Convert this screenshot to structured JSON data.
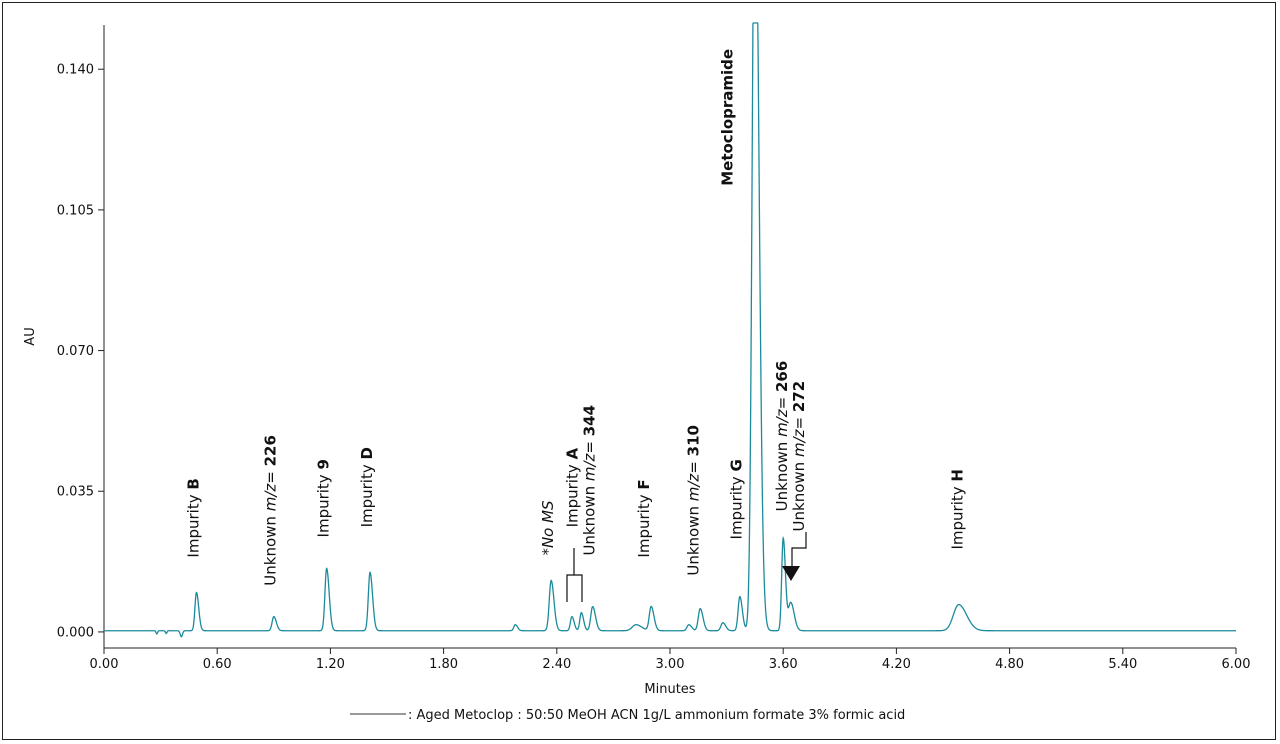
{
  "chart_data": {
    "type": "line",
    "xlabel": "Minutes",
    "ylabel": "AU",
    "xlim": [
      0.0,
      6.0
    ],
    "ylim": [
      -0.004,
      0.151
    ],
    "x_ticks": [
      "0.00",
      "0.60",
      "1.20",
      "1.80",
      "2.40",
      "3.00",
      "3.60",
      "4.20",
      "4.80",
      "5.40",
      "6.00"
    ],
    "y_ticks": [
      "0.000",
      "0.035",
      "0.070",
      "0.105",
      "0.140"
    ],
    "grid": false,
    "legend": {
      "placement": "bottom",
      "text": ": Aged Metoclop : 50:50 MeOH ACN 1g/L ammonium formate 3% formic acid"
    },
    "series": [
      {
        "line_color": "#1b8b9c",
        "baseline": 0.0003,
        "peaks": [
          {
            "rt": 0.49,
            "height": 0.0095,
            "width": 0.008
          },
          {
            "rt": 0.9,
            "height": 0.0035,
            "width": 0.009
          },
          {
            "rt": 1.18,
            "height": 0.0155,
            "width": 0.009
          },
          {
            "rt": 1.41,
            "height": 0.0145,
            "width": 0.009
          },
          {
            "rt": 2.18,
            "height": 0.0015,
            "width": 0.008
          },
          {
            "rt": 2.37,
            "height": 0.0125,
            "width": 0.01
          },
          {
            "rt": 2.48,
            "height": 0.0035,
            "width": 0.008
          },
          {
            "rt": 2.53,
            "height": 0.0045,
            "width": 0.008
          },
          {
            "rt": 2.59,
            "height": 0.006,
            "width": 0.01
          },
          {
            "rt": 2.82,
            "height": 0.0015,
            "width": 0.02
          },
          {
            "rt": 2.9,
            "height": 0.006,
            "width": 0.01
          },
          {
            "rt": 3.1,
            "height": 0.0015,
            "width": 0.01
          },
          {
            "rt": 3.16,
            "height": 0.0055,
            "width": 0.01
          },
          {
            "rt": 3.28,
            "height": 0.002,
            "width": 0.01
          },
          {
            "rt": 3.37,
            "height": 0.0085,
            "width": 0.009
          },
          {
            "rt": 3.45,
            "height": 0.2,
            "width": 0.014
          },
          {
            "rt": 3.6,
            "height": 0.023,
            "width": 0.008
          },
          {
            "rt": 3.64,
            "height": 0.007,
            "width": 0.012
          },
          {
            "rt": 4.53,
            "height": 0.0065,
            "width": 0.028
          }
        ],
        "dips": [
          {
            "rt": 0.28,
            "depth": 0.0008,
            "width": 0.004
          },
          {
            "rt": 0.33,
            "depth": 0.0007,
            "width": 0.004
          },
          {
            "rt": 0.41,
            "depth": 0.0015,
            "width": 0.006
          }
        ]
      }
    ],
    "annotations": [
      {
        "lines": [
          {
            "text": "Impurity "
          },
          {
            "text": "B",
            "bold": true
          }
        ],
        "x": 0.5,
        "y": 0.0185
      },
      {
        "lines": [
          {
            "text": "Unknown "
          },
          {
            "text": "m/z",
            "italic": true
          },
          {
            "text": "= "
          },
          {
            "text": "226",
            "bold": true
          }
        ],
        "x": 0.91,
        "y": 0.0115
      },
      {
        "lines": [
          {
            "text": "Impurity "
          },
          {
            "text": "9",
            "bold": true
          }
        ],
        "x": 1.19,
        "y": 0.0235
      },
      {
        "lines": [
          {
            "text": "Impurity "
          },
          {
            "text": "D",
            "bold": true
          }
        ],
        "x": 1.42,
        "y": 0.026
      },
      {
        "lines": [
          {
            "text": "*No MS",
            "italic": true
          }
        ],
        "x": 2.38,
        "y": 0.019
      },
      {
        "lines": [
          {
            "text": "Impurity "
          },
          {
            "text": "A",
            "bold": true
          }
        ],
        "x": 2.51,
        "y": 0.026
      },
      {
        "lines": [
          {
            "text": "Unknown "
          },
          {
            "text": "m/z",
            "italic": true
          },
          {
            "text": "= "
          },
          {
            "text": "344",
            "bold": true
          }
        ],
        "x": 2.6,
        "y": 0.019
      },
      {
        "lines": [
          {
            "text": "Impurity "
          },
          {
            "text": "F",
            "bold": true
          }
        ],
        "x": 2.89,
        "y": 0.0185
      },
      {
        "lines": [
          {
            "text": "Unknown "
          },
          {
            "text": "m/z",
            "italic": true
          },
          {
            "text": "= "
          },
          {
            "text": "310",
            "bold": true
          }
        ],
        "x": 3.15,
        "y": 0.014
      },
      {
        "lines": [
          {
            "text": "Impurity "
          },
          {
            "text": "G",
            "bold": true
          }
        ],
        "x": 3.38,
        "y": 0.023
      },
      {
        "lines": [
          {
            "text": "Metoclopramide",
            "bold": true
          }
        ],
        "x": 3.33,
        "y": 0.111
      },
      {
        "lines": [
          {
            "text": "Unknown "
          },
          {
            "text": "m/z",
            "italic": true
          },
          {
            "text": "= "
          },
          {
            "text": "266",
            "bold": true
          }
        ],
        "x": 3.62,
        "y": 0.03
      },
      {
        "lines": [
          {
            "text": "Unknown "
          },
          {
            "text": "m/z",
            "italic": true
          },
          {
            "text": "= "
          },
          {
            "text": "272",
            "bold": true
          }
        ],
        "x": 3.71,
        "y": 0.025
      },
      {
        "lines": [
          {
            "text": "Impurity "
          },
          {
            "text": "H",
            "bold": true
          }
        ],
        "x": 4.55,
        "y": 0.0205
      }
    ]
  }
}
